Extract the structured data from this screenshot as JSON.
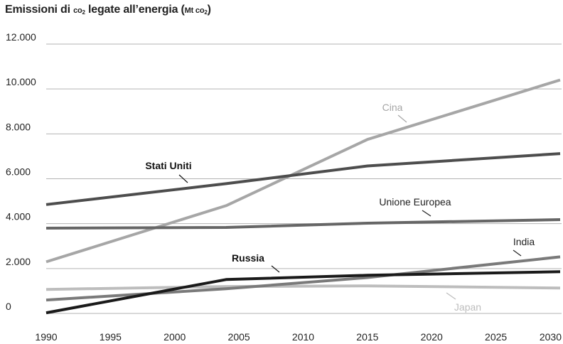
{
  "chart_data": {
    "type": "line",
    "title": {
      "main": "Emissioni di ",
      "co_word": "co",
      "co_sub": "2",
      "mid": " legate all’energia (",
      "unit_mt": "Mt",
      "unit_co": " co",
      "unit_sub": "2",
      "close": ")"
    },
    "xlabel": "",
    "ylabel": "",
    "xlim": [
      1990,
      2030
    ],
    "ylim": [
      0,
      12000
    ],
    "x_ticks": [
      "1990",
      "1995",
      "2000",
      "2005",
      "2010",
      "2015",
      "2020",
      "2025",
      "2030"
    ],
    "y_ticks": [
      "0",
      "2.000",
      "4.000",
      "6.000",
      "8.000",
      "10.000",
      "12.000"
    ],
    "grid": true,
    "series": [
      {
        "name": "Cina",
        "color": "#a6a6a6",
        "x": [
          1990,
          2004,
          2015,
          2030
        ],
        "y": [
          2300,
          4800,
          7750,
          10400
        ]
      },
      {
        "name": "Stati Uniti",
        "color": "#4d4d4d",
        "x": [
          1990,
          2004,
          2015,
          2030
        ],
        "y": [
          4850,
          5780,
          6570,
          7120
        ]
      },
      {
        "name": "Unione Europea",
        "color": "#666666",
        "x": [
          1990,
          2004,
          2015,
          2030
        ],
        "y": [
          3800,
          3830,
          4020,
          4180
        ]
      },
      {
        "name": "India",
        "color": "#7a7a7a",
        "x": [
          1990,
          2004,
          2015,
          2030
        ],
        "y": [
          600,
          1100,
          1600,
          2520
        ]
      },
      {
        "name": "Russia",
        "color": "#1a1a1a",
        "x": [
          1990,
          2004,
          2015,
          2030
        ],
        "y": [
          30,
          1510,
          1700,
          1860
        ]
      },
      {
        "name": "Japan",
        "color": "#bdbdbd",
        "x": [
          1990,
          2004,
          2015,
          2030
        ],
        "y": [
          1070,
          1200,
          1230,
          1130
        ]
      }
    ]
  }
}
